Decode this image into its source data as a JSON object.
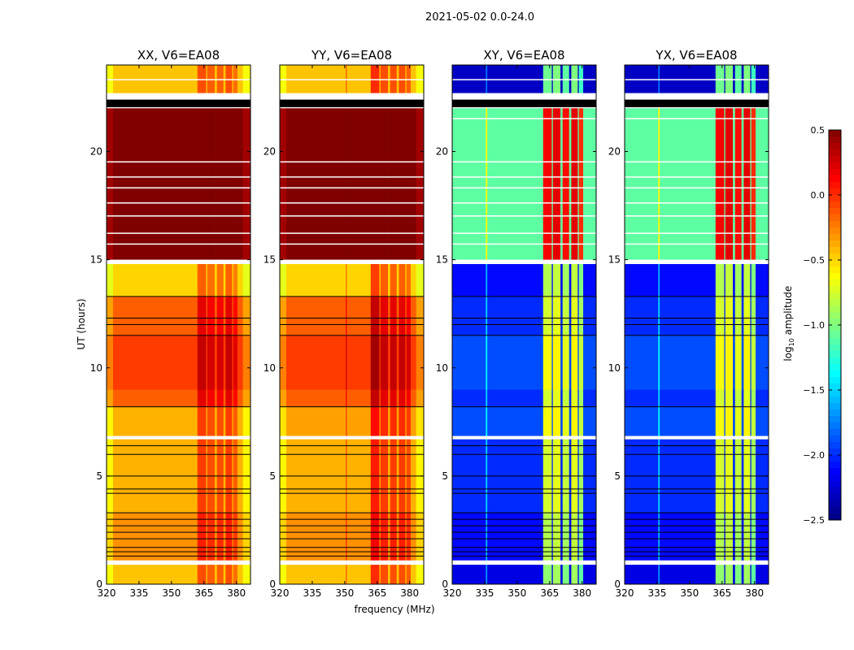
{
  "chart_data": {
    "type": "heatmap",
    "title": "2021-05-02 0.0-24.0",
    "xlabel": "frequency (MHz)",
    "ylabel": "UT (hours)",
    "xlim": [
      320,
      386.5
    ],
    "ylim": [
      0,
      24
    ],
    "xticks": [
      "320",
      "335",
      "350",
      "365",
      "380"
    ],
    "xtick_values": [
      320,
      335,
      350,
      365,
      380
    ],
    "yticks": [
      "0",
      "5",
      "10",
      "15",
      "20"
    ],
    "ytick_values": [
      0,
      5,
      10,
      15,
      20
    ],
    "colorbar": {
      "label_main": "log",
      "label_sub": "10",
      "label_rest": " amplitude",
      "range": [
        -2.5,
        0.5
      ],
      "colormap": "jet",
      "ticks": [
        "0.5",
        "0.0",
        "−0.5",
        "−1.0",
        "−1.5",
        "−2.0",
        "−2.5"
      ],
      "tick_values": [
        0.5,
        0.0,
        -0.5,
        -1.0,
        -1.5,
        -2.0,
        -2.5
      ]
    },
    "panels": [
      {
        "title": "XX, V6=EA08",
        "rows": [
          [
            0,
            0.9,
            -0.45
          ],
          [
            1.1,
            3.3,
            -0.3
          ],
          [
            3.3,
            6.7,
            -0.4
          ],
          [
            6.85,
            8.2,
            -0.4
          ],
          [
            8.2,
            9,
            -0.15
          ],
          [
            9,
            11.5,
            -0.05
          ],
          [
            11.5,
            13.3,
            -0.15
          ],
          [
            13.3,
            14.8,
            -0.5
          ],
          [
            15,
            22,
            0.6
          ],
          [
            22.7,
            24,
            -0.45
          ]
        ],
        "bands": [
          [
            320,
            323,
            -0.2
          ],
          [
            362,
            366,
            0.35
          ],
          [
            366.5,
            370,
            0.3
          ],
          [
            371,
            374,
            0.3
          ],
          [
            375,
            378,
            0.35
          ],
          [
            378.5,
            380.5,
            0.25
          ],
          [
            383,
            386.5,
            -0.2
          ]
        ],
        "flagged_lines": [
          1.3,
          1.5,
          1.7,
          2.1,
          2.4,
          2.7,
          3.0,
          3.3,
          4.2,
          4.4,
          5.0,
          6.0,
          6.4,
          8.2,
          11.5,
          12.0,
          12.3,
          13.3
        ],
        "flagged_blocks": [
          [
            22.05,
            22.4
          ]
        ],
        "gaps": [
          [
            0.9,
            1.1
          ],
          [
            6.7,
            6.85
          ],
          [
            14.8,
            15
          ],
          [
            15.7,
            15.75
          ],
          [
            16.2,
            16.25
          ],
          [
            17.0,
            17.05
          ],
          [
            17.6,
            17.65
          ],
          [
            18.3,
            18.35
          ],
          [
            18.8,
            18.85
          ],
          [
            19.5,
            19.55
          ],
          [
            22.4,
            22.7
          ],
          [
            23.3,
            23.35
          ]
        ]
      },
      {
        "title": "YY, V6=EA08",
        "rows": [
          [
            0,
            0.9,
            -0.45
          ],
          [
            1.1,
            3.3,
            -0.3
          ],
          [
            3.3,
            6.7,
            -0.4
          ],
          [
            6.85,
            8.2,
            -0.35
          ],
          [
            8.2,
            9,
            -0.15
          ],
          [
            9,
            11.5,
            -0.05
          ],
          [
            11.5,
            13.3,
            -0.15
          ],
          [
            13.3,
            14.8,
            -0.5
          ],
          [
            15,
            22,
            0.6
          ],
          [
            22.7,
            24,
            -0.45
          ]
        ],
        "bands": [
          [
            320,
            323,
            -0.2
          ],
          [
            350.5,
            351,
            0.3
          ],
          [
            362,
            366,
            0.45
          ],
          [
            366.5,
            370,
            0.35
          ],
          [
            371,
            374,
            0.35
          ],
          [
            375,
            378,
            0.35
          ],
          [
            378.5,
            380.5,
            0.3
          ],
          [
            383,
            386.5,
            -0.2
          ]
        ],
        "flagged_lines": [
          1.3,
          1.5,
          1.7,
          2.1,
          2.4,
          2.7,
          3.0,
          3.3,
          4.2,
          4.4,
          5.0,
          6.0,
          6.4,
          8.2,
          11.5,
          12.0,
          12.3,
          13.3
        ],
        "flagged_blocks": [
          [
            22.05,
            22.4
          ]
        ],
        "gaps": [
          [
            0.9,
            1.1
          ],
          [
            6.7,
            6.85
          ],
          [
            14.8,
            15
          ],
          [
            15.7,
            15.75
          ],
          [
            16.2,
            16.25
          ],
          [
            17.0,
            17.05
          ],
          [
            17.6,
            17.65
          ],
          [
            18.3,
            18.35
          ],
          [
            18.8,
            18.85
          ],
          [
            19.5,
            19.55
          ],
          [
            22.4,
            22.7
          ],
          [
            23.3,
            23.35
          ]
        ]
      },
      {
        "title": "XY, V6=EA08",
        "rows": [
          [
            0,
            0.9,
            -2.2
          ],
          [
            1.1,
            3.3,
            -2.1
          ],
          [
            3.3,
            6.7,
            -2.0
          ],
          [
            6.85,
            8.2,
            -1.9
          ],
          [
            8.2,
            9,
            -2.0
          ],
          [
            9,
            11.5,
            -1.9
          ],
          [
            11.5,
            13.3,
            -2.0
          ],
          [
            13.3,
            14.8,
            -2.1
          ],
          [
            15,
            22,
            -1.1
          ],
          [
            22.7,
            24,
            -2.3
          ]
        ],
        "bands": [
          [
            335.5,
            336.2,
            0.5
          ],
          [
            362,
            366,
            1.25
          ],
          [
            366.5,
            370,
            1.3
          ],
          [
            371,
            374,
            1.2
          ],
          [
            375,
            378,
            1.3
          ],
          [
            378.5,
            380.5,
            1.1
          ]
        ],
        "flagged_lines": [
          1.3,
          1.5,
          1.7,
          2.1,
          2.4,
          2.7,
          3.0,
          3.3,
          4.2,
          4.4,
          5.0,
          6.0,
          6.4,
          8.2,
          11.5,
          12.0,
          12.3,
          13.3
        ],
        "flagged_blocks": [
          [
            22.05,
            22.4
          ]
        ],
        "gaps": [
          [
            0.9,
            1.1
          ],
          [
            6.7,
            6.85
          ],
          [
            14.8,
            15
          ],
          [
            15.7,
            15.75
          ],
          [
            16.2,
            16.25
          ],
          [
            17.0,
            17.05
          ],
          [
            17.6,
            17.65
          ],
          [
            18.3,
            18.35
          ],
          [
            18.8,
            18.85
          ],
          [
            19.5,
            19.55
          ],
          [
            21.5,
            21.55
          ],
          [
            22.4,
            22.7
          ],
          [
            23.3,
            23.35
          ]
        ]
      },
      {
        "title": "YX, V6=EA08",
        "rows": [
          [
            0,
            0.9,
            -2.2
          ],
          [
            1.1,
            3.3,
            -2.1
          ],
          [
            3.3,
            6.7,
            -2.0
          ],
          [
            6.85,
            8.2,
            -1.9
          ],
          [
            8.2,
            9,
            -2.0
          ],
          [
            9,
            11.5,
            -1.9
          ],
          [
            11.5,
            13.3,
            -2.0
          ],
          [
            13.3,
            14.8,
            -2.1
          ],
          [
            15,
            22,
            -1.1
          ],
          [
            22.7,
            24,
            -2.3
          ]
        ],
        "bands": [
          [
            335.5,
            336.2,
            0.5
          ],
          [
            362,
            366,
            1.25
          ],
          [
            366.5,
            370,
            1.3
          ],
          [
            371,
            374,
            1.2
          ],
          [
            375,
            378,
            1.3
          ],
          [
            378.5,
            380.5,
            1.1
          ]
        ],
        "flagged_lines": [
          1.3,
          1.5,
          1.7,
          2.1,
          2.4,
          2.7,
          3.0,
          3.3,
          4.2,
          4.4,
          5.0,
          6.0,
          6.4,
          8.2,
          11.5,
          12.0,
          12.3,
          13.3
        ],
        "flagged_blocks": [
          [
            22.05,
            22.4
          ]
        ],
        "gaps": [
          [
            0.9,
            1.1
          ],
          [
            6.7,
            6.85
          ],
          [
            14.8,
            15
          ],
          [
            15.7,
            15.75
          ],
          [
            16.2,
            16.25
          ],
          [
            17.0,
            17.05
          ],
          [
            17.6,
            17.65
          ],
          [
            18.3,
            18.35
          ],
          [
            18.8,
            18.85
          ],
          [
            19.5,
            19.55
          ],
          [
            21.5,
            21.55
          ],
          [
            22.4,
            22.7
          ],
          [
            23.3,
            23.35
          ]
        ]
      }
    ]
  }
}
